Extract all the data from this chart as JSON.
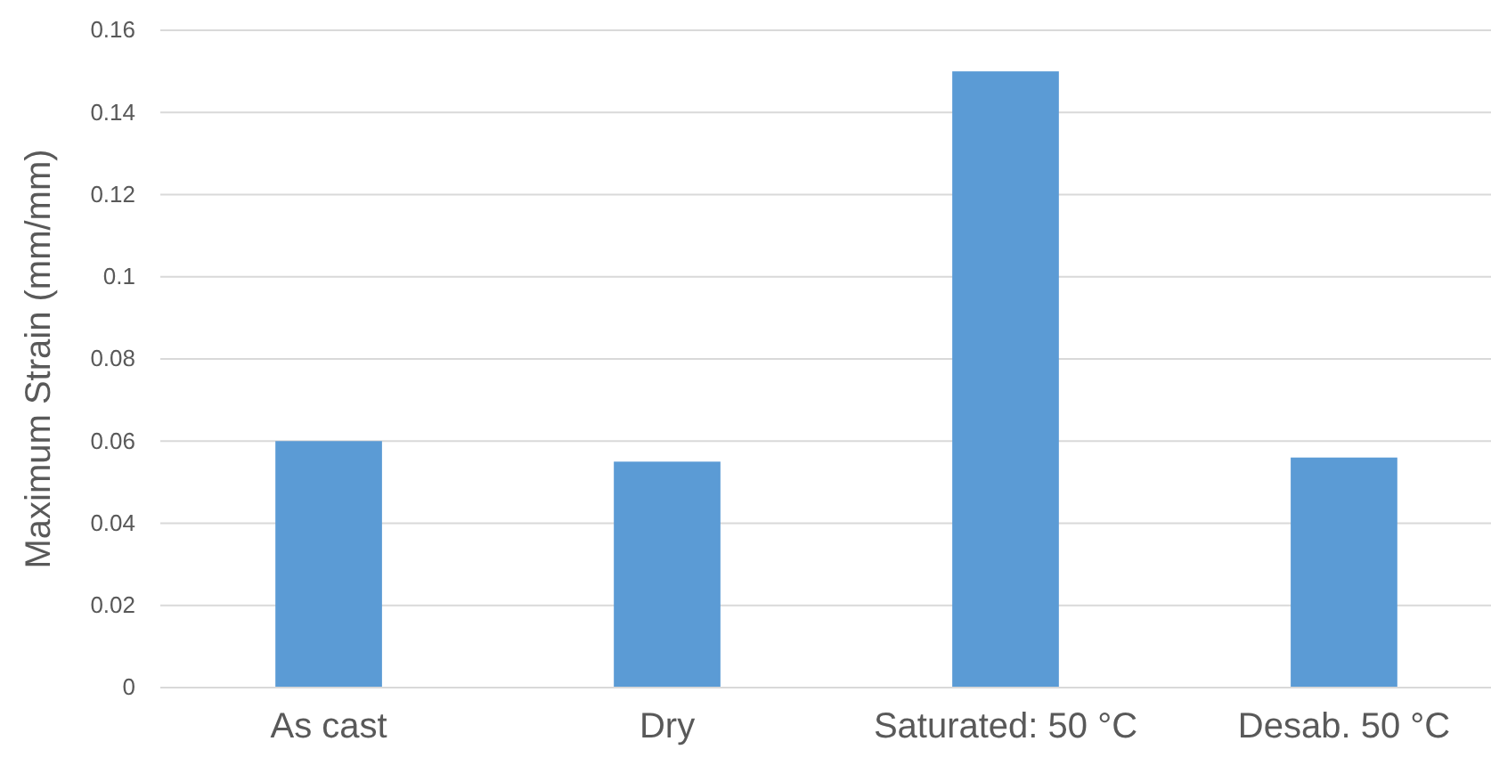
{
  "chart_data": {
    "type": "bar",
    "ylabel": "Maximum Strain (mm/mm)",
    "categories": [
      "As cast",
      "Dry",
      "Saturated: 50 °C",
      "Desab. 50 °C"
    ],
    "values": [
      0.06,
      0.055,
      0.15,
      0.056
    ],
    "color": "#5b9bd5",
    "ylim": [
      0,
      0.16
    ],
    "yticks": [
      0,
      0.02,
      0.04,
      0.06,
      0.08,
      0.1,
      0.12,
      0.14,
      0.16
    ],
    "grid": "y"
  }
}
